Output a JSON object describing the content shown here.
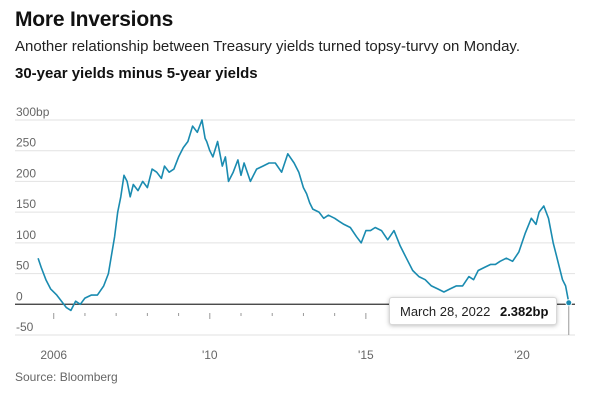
{
  "header": {
    "title": "More Inversions",
    "subtitle": "Another relationship between Treasury yields turned topsy-turvy on Monday."
  },
  "footer": {
    "source": "Source: Bloomberg"
  },
  "tooltip": {
    "date": "March 28, 2022",
    "value": "2.382bp"
  },
  "colors": {
    "line": "#1a8bb0",
    "grid": "#e2e2e2",
    "zero_line": "#333333"
  },
  "chart_data": {
    "type": "line",
    "title": "30-year yields minus 5-year yields",
    "xlim": [
      2005.4,
      2022.7
    ],
    "ylim": [
      -50,
      300
    ],
    "y_ticks": [
      {
        "value": 300,
        "label": "300bp"
      },
      {
        "value": 250,
        "label": "250"
      },
      {
        "value": 200,
        "label": "200"
      },
      {
        "value": 150,
        "label": "150"
      },
      {
        "value": 100,
        "label": "100"
      },
      {
        "value": 50,
        "label": "50"
      },
      {
        "value": 0,
        "label": "0"
      },
      {
        "value": -50,
        "label": "-50"
      }
    ],
    "x_ticks": [
      {
        "value": 2006,
        "label": "2006"
      },
      {
        "value": 2011,
        "label": "'10"
      },
      {
        "value": 2016,
        "label": "'15"
      },
      {
        "value": 2021,
        "label": "'20"
      }
    ],
    "grid": true,
    "series": [
      {
        "x": [
          2005.5,
          2005.6,
          2005.75,
          2005.9,
          2006.1,
          2006.25,
          2006.4,
          2006.55,
          2006.7,
          2006.85,
          2007.0,
          2007.2,
          2007.4,
          2007.6,
          2007.75,
          2007.85,
          2007.95,
          2008.05,
          2008.15,
          2008.25,
          2008.35,
          2008.45,
          2008.55,
          2008.7,
          2008.85,
          2009.0,
          2009.15,
          2009.3,
          2009.45,
          2009.55,
          2009.7,
          2009.85,
          2010.0,
          2010.15,
          2010.3,
          2010.45,
          2010.6,
          2010.75,
          2010.85,
          2010.9,
          2011.0,
          2011.1,
          2011.25,
          2011.4,
          2011.5,
          2011.6,
          2011.75,
          2011.9,
          2012.0,
          2012.1,
          2012.3,
          2012.5,
          2012.7,
          2012.9,
          2013.1,
          2013.3,
          2013.5,
          2013.7,
          2013.85,
          2014.0,
          2014.1,
          2014.2,
          2014.3,
          2014.5,
          2014.65,
          2014.8,
          2015.0,
          2015.15,
          2015.3,
          2015.5,
          2015.7,
          2015.85,
          2016.0,
          2016.15,
          2016.3,
          2016.5,
          2016.7,
          2016.9,
          2017.1,
          2017.3,
          2017.5,
          2017.7,
          2017.9,
          2018.1,
          2018.3,
          2018.5,
          2018.7,
          2018.9,
          2019.1,
          2019.3,
          2019.45,
          2019.6,
          2019.8,
          2020.0,
          2020.15,
          2020.3,
          2020.5,
          2020.7,
          2020.9,
          2021.1,
          2021.3,
          2021.45,
          2021.55,
          2021.7,
          2021.85,
          2022.0,
          2022.1,
          2022.2,
          2022.3,
          2022.4,
          2022.5
        ],
        "y": [
          75,
          60,
          40,
          25,
          15,
          5,
          -5,
          -10,
          5,
          0,
          10,
          15,
          15,
          30,
          50,
          80,
          110,
          150,
          175,
          210,
          200,
          175,
          195,
          185,
          200,
          190,
          220,
          215,
          205,
          225,
          215,
          220,
          240,
          255,
          265,
          290,
          280,
          300,
          270,
          265,
          250,
          240,
          265,
          225,
          240,
          200,
          215,
          235,
          210,
          230,
          200,
          220,
          225,
          230,
          230,
          215,
          245,
          230,
          215,
          190,
          180,
          165,
          155,
          150,
          140,
          145,
          140,
          135,
          130,
          125,
          110,
          100,
          120,
          120,
          125,
          120,
          105,
          120,
          95,
          75,
          55,
          45,
          40,
          30,
          25,
          20,
          25,
          30,
          30,
          45,
          40,
          55,
          60,
          65,
          65,
          70,
          75,
          70,
          85,
          115,
          140,
          130,
          150,
          160,
          140,
          100,
          80,
          60,
          40,
          30,
          2.4
        ]
      }
    ]
  }
}
